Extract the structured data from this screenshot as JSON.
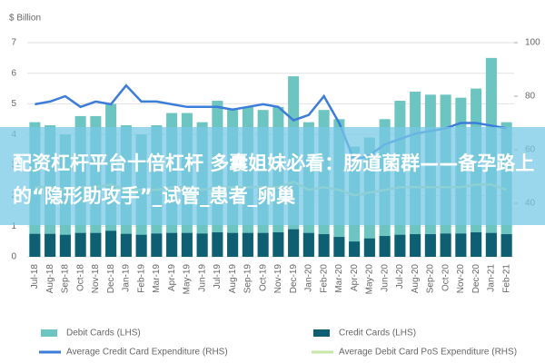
{
  "chart_data": {
    "type": "bar",
    "ylabel": "$ Billion",
    "categories": [
      "Jul-18",
      "Aug-18",
      "Sep-18",
      "Oct-18",
      "Nov-18",
      "Dec-18",
      "Jan-19",
      "Feb-19",
      "Mar-19",
      "Apr-19",
      "May-19",
      "Jun-19",
      "Jul-19",
      "Aug-19",
      "Sep-19",
      "Oct-19",
      "Nov-19",
      "Dec-19",
      "Jan-20",
      "Feb-20",
      "Mar-20",
      "Apr-20",
      "May-20",
      "Jun-20",
      "Jul-20",
      "Aug-20",
      "Sep-20",
      "Oct-20",
      "Nov-20",
      "Dec-20",
      "Jan-21",
      "Feb-21"
    ],
    "series": [
      {
        "name": "Debit Cards (LHS)",
        "color": "#6cc5c0",
        "values": [
          4.4,
          4.3,
          4.0,
          4.6,
          4.6,
          5.0,
          4.3,
          4.0,
          4.3,
          4.7,
          4.7,
          4.4,
          5.1,
          4.8,
          4.9,
          4.8,
          4.9,
          5.9,
          4.4,
          4.8,
          4.5,
          3.6,
          3.9,
          4.5,
          5.1,
          5.4,
          5.3,
          5.3,
          5.2,
          5.5,
          6.5,
          4.4
        ]
      },
      {
        "name": "Credit Cards (LHS)",
        "color": "#0f5f73",
        "values": [
          0.75,
          0.75,
          0.72,
          0.78,
          0.78,
          0.85,
          0.75,
          0.72,
          0.76,
          0.78,
          0.78,
          0.76,
          0.8,
          0.78,
          0.78,
          0.78,
          0.8,
          0.9,
          0.78,
          0.74,
          0.65,
          0.5,
          0.6,
          0.68,
          0.72,
          0.74,
          0.74,
          0.76,
          0.76,
          0.8,
          0.78,
          0.74
        ]
      },
      {
        "name": "Average Credit Card Expenditure (RHS)",
        "color": "#3b7dd8",
        "type": "line",
        "axis": "y2",
        "values": [
          77,
          78,
          80,
          76,
          78,
          77,
          84,
          78,
          78,
          77,
          76,
          76,
          76,
          75,
          76,
          77,
          76,
          71,
          73,
          80,
          70,
          56,
          58,
          62,
          64,
          66,
          67,
          68,
          70,
          70,
          69,
          68
        ]
      },
      {
        "name": "Average Debit Card PoS Expenditure (RHS)",
        "color": "#c8e6a8",
        "type": "line",
        "axis": "y2",
        "values": [
          46,
          46,
          45,
          46,
          46,
          47,
          45,
          45,
          45,
          46,
          46,
          45,
          46,
          46,
          46,
          46,
          46,
          48,
          45,
          46,
          45,
          43,
          44,
          45,
          46,
          46,
          46,
          46,
          46,
          47,
          47,
          45
        ]
      }
    ],
    "ylim": [
      0,
      7
    ],
    "yticks": [
      0,
      1,
      2,
      3,
      4,
      5,
      6,
      7
    ],
    "y2lim": [
      20,
      100
    ],
    "y2ticks": [
      40,
      60,
      80,
      100
    ],
    "grid": true,
    "legend": "bottom",
    "annotation": "配资杠杆平台十倍杠杆 多囊姐妹必看：肠道菌群——备孕路上的“隐形助攻手”_试管_患者_卵巢"
  }
}
